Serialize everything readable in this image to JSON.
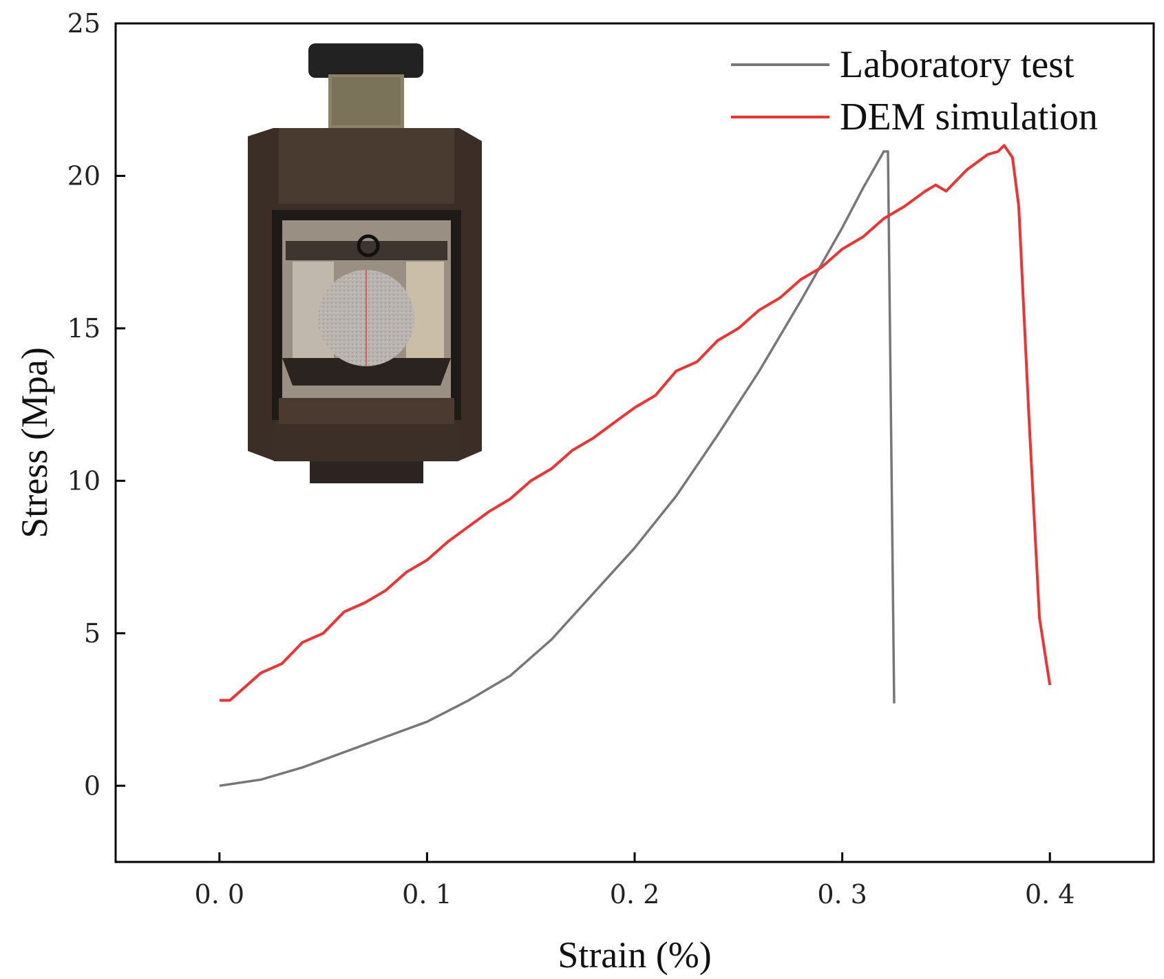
{
  "chart_data": {
    "type": "line",
    "xlabel": "Strain (%)",
    "ylabel": "Stress (Mpa)",
    "xlim": [
      -0.05,
      0.45
    ],
    "ylim": [
      -2.5,
      25
    ],
    "xticks": [
      0.0,
      0.1,
      0.2,
      0.3,
      0.4
    ],
    "xtick_labels": [
      "0. 0",
      "0. 1",
      "0. 2",
      "0. 3",
      "0. 4"
    ],
    "yticks": [
      0,
      5,
      10,
      15,
      20,
      25
    ],
    "ytick_labels": [
      "0",
      "5",
      "10",
      "15",
      "20",
      "25"
    ],
    "grid": false,
    "legend_position": "top-right",
    "series": [
      {
        "name": "Laboratory test",
        "color": "#777777",
        "x": [
          0.0,
          0.02,
          0.04,
          0.06,
          0.08,
          0.1,
          0.12,
          0.14,
          0.16,
          0.18,
          0.2,
          0.22,
          0.24,
          0.26,
          0.28,
          0.3,
          0.31,
          0.32,
          0.322,
          0.325
        ],
        "y": [
          0.0,
          0.2,
          0.6,
          1.1,
          1.6,
          2.1,
          2.8,
          3.6,
          4.8,
          6.3,
          7.8,
          9.5,
          11.5,
          13.6,
          15.9,
          18.3,
          19.6,
          20.8,
          20.8,
          2.7
        ]
      },
      {
        "name": "DEM simulation",
        "color": "#ee3333",
        "x": [
          0.0,
          0.005,
          0.01,
          0.02,
          0.03,
          0.04,
          0.05,
          0.06,
          0.07,
          0.08,
          0.09,
          0.1,
          0.11,
          0.12,
          0.13,
          0.14,
          0.15,
          0.16,
          0.17,
          0.18,
          0.19,
          0.2,
          0.21,
          0.22,
          0.23,
          0.24,
          0.25,
          0.26,
          0.27,
          0.28,
          0.29,
          0.3,
          0.31,
          0.32,
          0.33,
          0.34,
          0.345,
          0.35,
          0.36,
          0.37,
          0.375,
          0.378,
          0.382,
          0.385,
          0.39,
          0.395,
          0.4
        ],
        "y": [
          2.8,
          2.8,
          3.1,
          3.7,
          4.0,
          4.7,
          5.0,
          5.7,
          6.0,
          6.4,
          7.0,
          7.4,
          8.0,
          8.5,
          9.0,
          9.4,
          10.0,
          10.4,
          11.0,
          11.4,
          11.9,
          12.4,
          12.8,
          13.6,
          13.9,
          14.6,
          15.0,
          15.6,
          16.0,
          16.6,
          17.0,
          17.6,
          18.0,
          18.6,
          19.0,
          19.5,
          19.7,
          19.5,
          20.2,
          20.7,
          20.8,
          21.0,
          20.6,
          19.0,
          12.0,
          5.5,
          3.3
        ]
      }
    ]
  },
  "inset_photo": {
    "description_icon": "compression-test-rig-photo-icon"
  }
}
